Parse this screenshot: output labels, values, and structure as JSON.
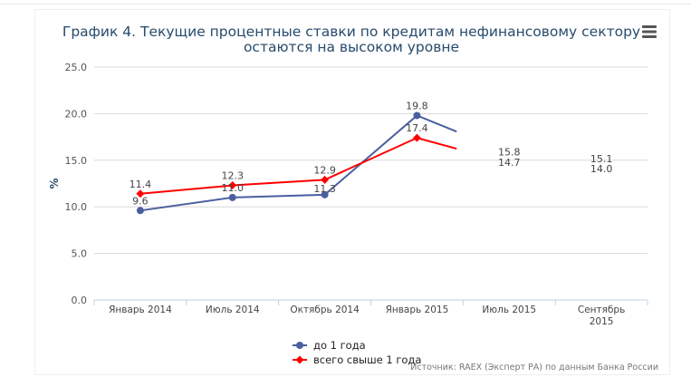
{
  "chart_data": {
    "type": "line",
    "title_lines": [
      "График 4. Текущие процентные ставки по кредитам нефинансовому сектору",
      "остаются на высоком уровне"
    ],
    "ylabel": "%",
    "xlabel": "",
    "ylim": [
      0,
      25
    ],
    "yticks": [
      "0.0",
      "5.0",
      "10.0",
      "15.0",
      "20.0",
      "25.0"
    ],
    "ytick_values": [
      0,
      5,
      10,
      15,
      20,
      25
    ],
    "categories": [
      "Январь 2014",
      "Июль 2014",
      "Октябрь 2014",
      "Январь 2015",
      "Июль 2015",
      "Сентябрь\n2015"
    ],
    "grid": true,
    "legend_position": "bottom-center",
    "series": [
      {
        "name": "до 1 года",
        "color": "#4a5fa0",
        "marker": "circle",
        "values": [
          9.6,
          11.0,
          11.3,
          19.8,
          15.8,
          15.1
        ],
        "labels": [
          "9.6",
          "11.0",
          "11.3",
          "19.8",
          "15.8",
          "15.1"
        ]
      },
      {
        "name": "всего свыше 1 года",
        "color": "#ff0000",
        "marker": "diamond",
        "values": [
          11.4,
          12.3,
          12.9,
          17.4,
          14.7,
          14.0
        ],
        "labels": [
          "11.4",
          "12.3",
          "12.9",
          "17.4",
          "14.7",
          "14.0"
        ]
      }
    ],
    "credits": "Источник: RAEX (Эксперт РА) по данным Банка России"
  },
  "icons": {
    "menu": "hamburger-menu-icon"
  }
}
